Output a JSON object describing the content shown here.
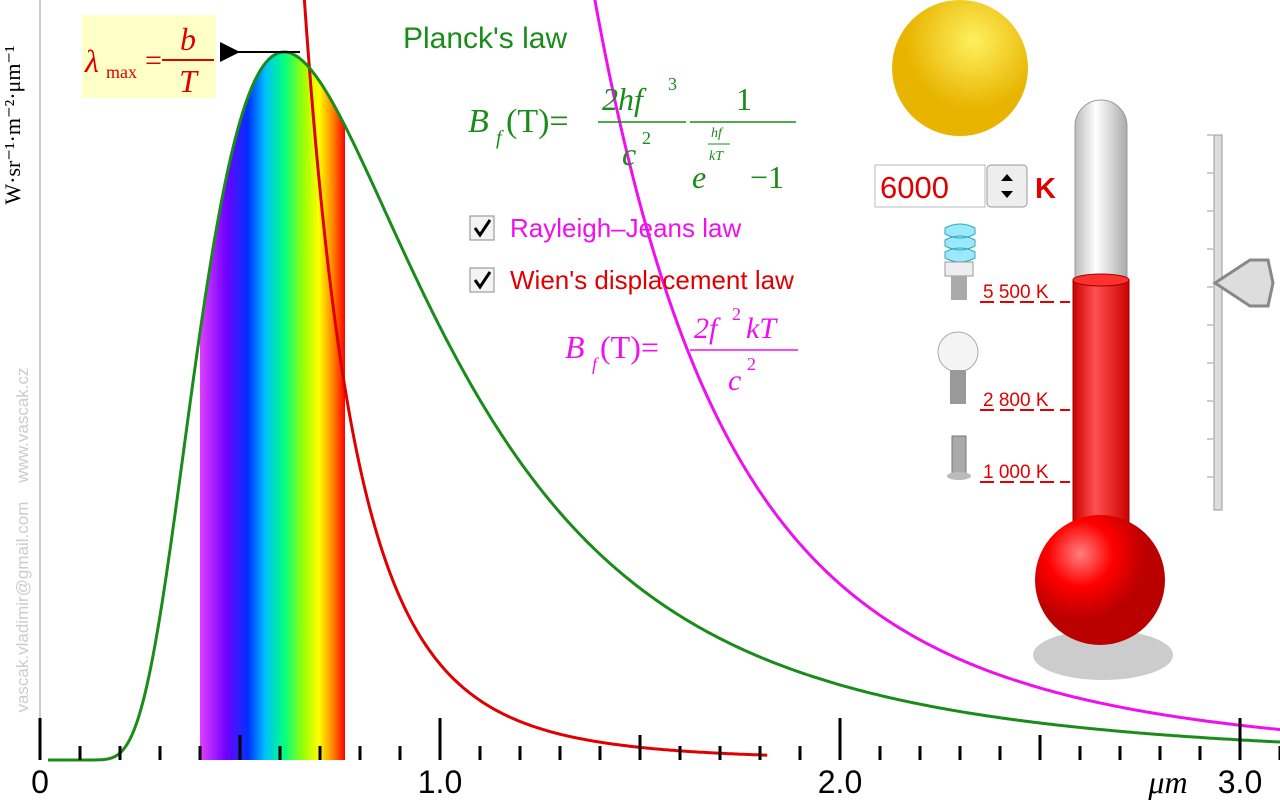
{
  "title": "Planck's law",
  "axes": {
    "x_unit": "μm",
    "x_ticks": [
      {
        "value": 0,
        "label": "0"
      },
      {
        "value": 1,
        "label": "1.0"
      },
      {
        "value": 2,
        "label": "2.0"
      },
      {
        "value": 3,
        "label": "3.0"
      }
    ],
    "y_unit": "W·sr⁻¹·m⁻²·μm⁻¹"
  },
  "wien_formula": {
    "lhs": "λ",
    "sub": "max",
    "eq": "=",
    "num": "b",
    "den": "T"
  },
  "planck_formula": {
    "lhs": "B",
    "sub": "f",
    "arg": "(T)=",
    "num1": "2hf",
    "num1_exp": "3",
    "den1": "c",
    "den1_exp": "2",
    "num2": "1",
    "den2_base": "e",
    "den2_exp_num": "hf",
    "den2_exp_den": "kT",
    "den2_tail": "−1"
  },
  "rj_formula": {
    "lhs": "B",
    "sub": "f",
    "arg": "(T)=",
    "num": "2f",
    "num_exp": "2",
    "num_tail": "kT",
    "den": "c",
    "den_exp": "2"
  },
  "checkboxes": [
    {
      "label": "Rayleigh–Jeans law",
      "checked": true
    },
    {
      "label": "Wien's displacement law",
      "checked": true
    }
  ],
  "temperature": {
    "value": 6000,
    "unit": "K"
  },
  "markers": [
    {
      "value": 5500,
      "label": "5 500 K"
    },
    {
      "value": 2800,
      "label": "2 800 K"
    },
    {
      "value": 1000,
      "label": "1 000 K"
    }
  ],
  "watermark": "vascak.vladimir@gmail.com    www.vascak.cz"
}
